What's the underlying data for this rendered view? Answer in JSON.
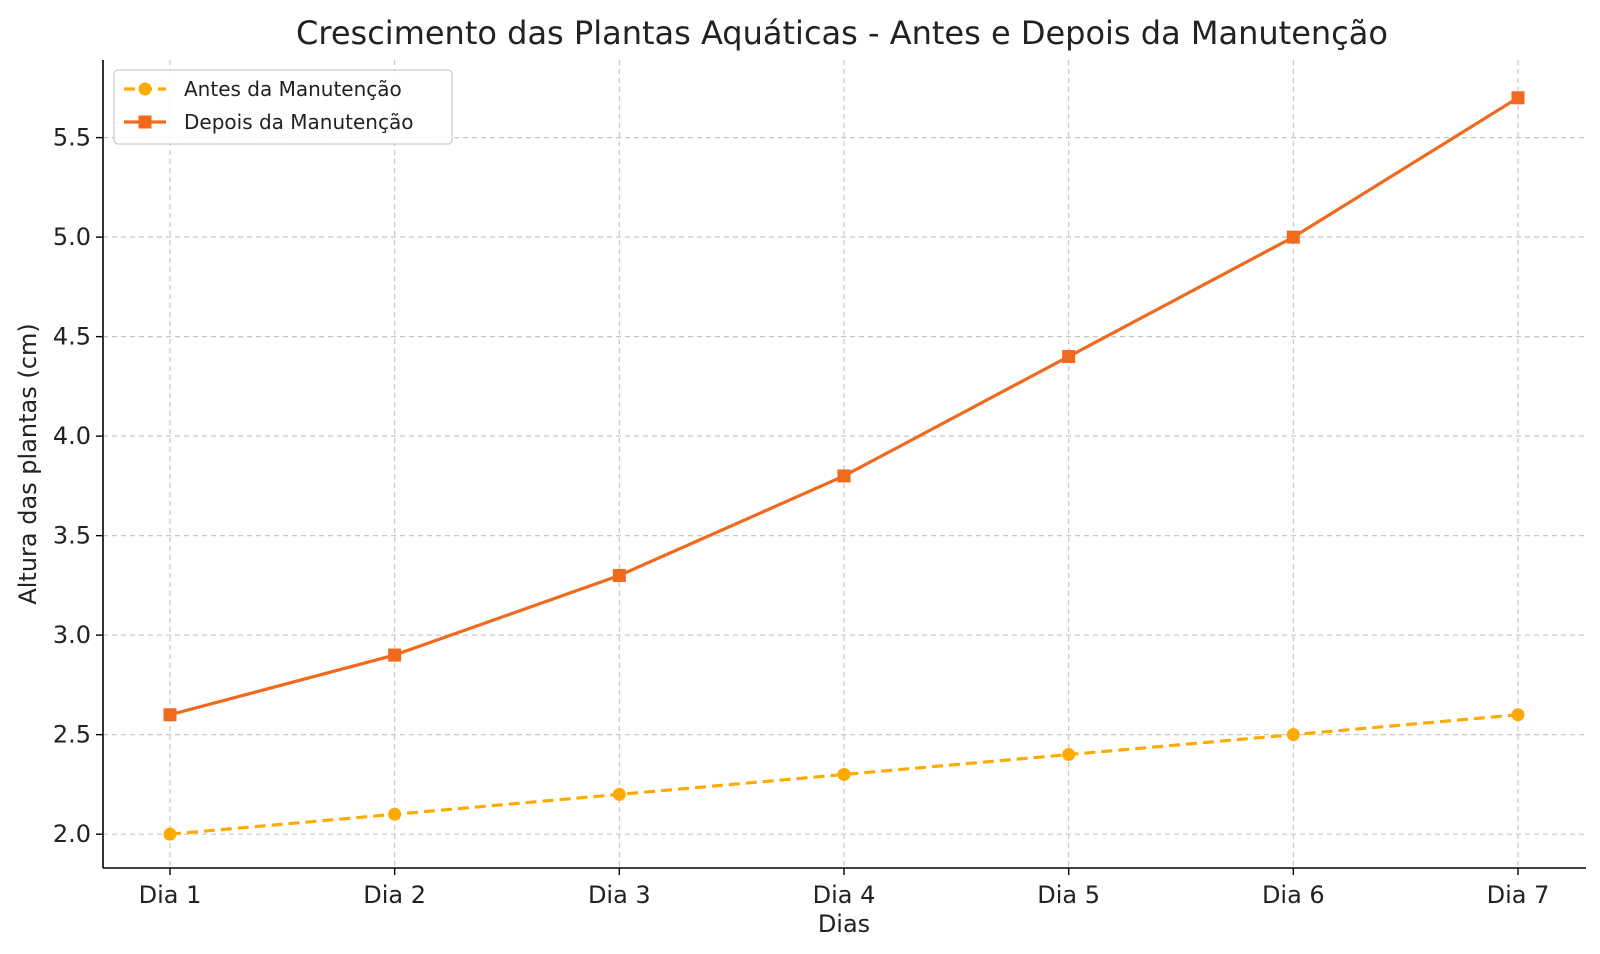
{
  "chart_data": {
    "type": "line",
    "title": "Crescimento das Plantas Aquáticas - Antes e Depois da Manutenção",
    "xlabel": "Dias",
    "ylabel": "Altura das plantas (cm)",
    "categories": [
      "Dia 1",
      "Dia 2",
      "Dia 3",
      "Dia 4",
      "Dia 5",
      "Dia 6",
      "Dia 7"
    ],
    "ylim": [
      1.83,
      5.89
    ],
    "yticks": [
      2.0,
      2.5,
      3.0,
      3.5,
      4.0,
      4.5,
      5.0,
      5.5
    ],
    "ytick_labels": [
      "2.0",
      "2.5",
      "3.0",
      "3.5",
      "4.0",
      "4.5",
      "5.0",
      "5.5"
    ],
    "grid": true,
    "legend_position": "top-left",
    "series": [
      {
        "name": "Antes da Manutenção",
        "values": [
          2.0,
          2.1,
          2.2,
          2.3,
          2.4,
          2.5,
          2.6
        ],
        "color": "#FFAA00",
        "line_style": "dashed",
        "marker": "circle"
      },
      {
        "name": "Depois da Manutenção",
        "values": [
          2.6,
          2.9,
          3.3,
          3.8,
          4.4,
          5.0,
          5.7
        ],
        "color": "#F06A1E",
        "line_style": "solid",
        "marker": "square"
      }
    ]
  }
}
